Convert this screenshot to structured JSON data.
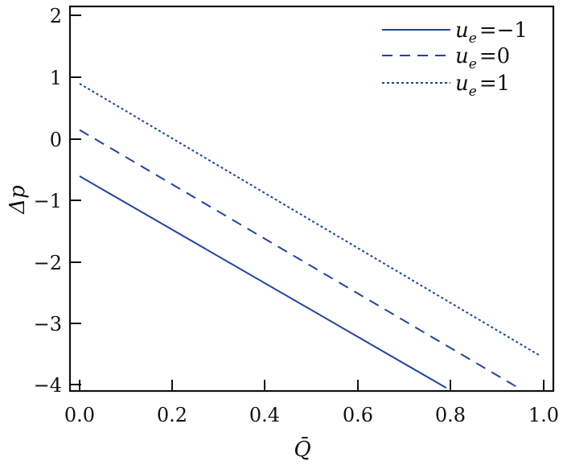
{
  "chart_data": {
    "type": "line",
    "title": "",
    "xlabel": "Q̄",
    "ylabel": "Δp",
    "xlim": [
      0.0,
      1.0
    ],
    "ylim": [
      -4.1,
      2.1
    ],
    "xticks": [
      "0.0",
      "0.2",
      "0.4",
      "0.6",
      "0.8",
      "1.0"
    ],
    "yticks": [
      "2",
      "1",
      "0",
      "−1",
      "−2",
      "−3",
      "−4"
    ],
    "grid": false,
    "legend_position": "upper right",
    "line_color": "#2142a8",
    "series": [
      {
        "name": "u_e = −1",
        "label_main": "u",
        "label_sub": "e",
        "label_rest": "=−1",
        "style": "solid",
        "x": [
          0.0,
          0.79
        ],
        "y": [
          -0.6,
          -4.03
        ]
      },
      {
        "name": "u_e = 0",
        "label_main": "u",
        "label_sub": "e",
        "label_rest": "=0",
        "style": "dashed",
        "x": [
          0.0,
          0.95
        ],
        "y": [
          0.15,
          -4.05
        ]
      },
      {
        "name": "u_e = 1",
        "label_main": "u",
        "label_sub": "e",
        "label_rest": "=1",
        "style": "dotted",
        "x": [
          0.0,
          0.99
        ],
        "y": [
          0.9,
          -3.5
        ]
      }
    ]
  }
}
